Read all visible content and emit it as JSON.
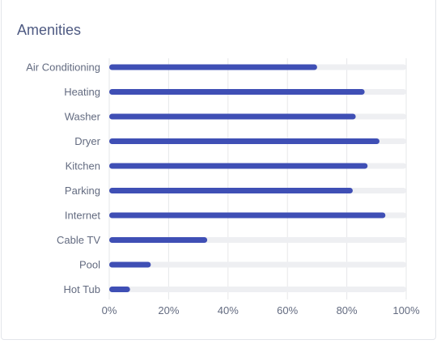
{
  "card": {
    "title": "Amenities"
  },
  "colors": {
    "bar": "#3f4fb5",
    "track": "#eeeff2",
    "grid": "#e6e7ea",
    "label": "#636b80",
    "title": "#4e5a82"
  },
  "chart_data": {
    "type": "bar",
    "orientation": "horizontal",
    "title": "Amenities",
    "categories": [
      "Air Conditioning",
      "Heating",
      "Washer",
      "Dryer",
      "Kitchen",
      "Parking",
      "Internet",
      "Cable TV",
      "Pool",
      "Hot Tub"
    ],
    "values": [
      70,
      86,
      83,
      91,
      87,
      82,
      93,
      33,
      14,
      7
    ],
    "xlim": [
      0,
      100
    ],
    "x_ticks": [
      "0%",
      "20%",
      "40%",
      "60%",
      "80%",
      "100%"
    ],
    "x_tick_values": [
      0,
      20,
      40,
      60,
      80,
      100
    ],
    "grid": true,
    "legend": "none"
  }
}
